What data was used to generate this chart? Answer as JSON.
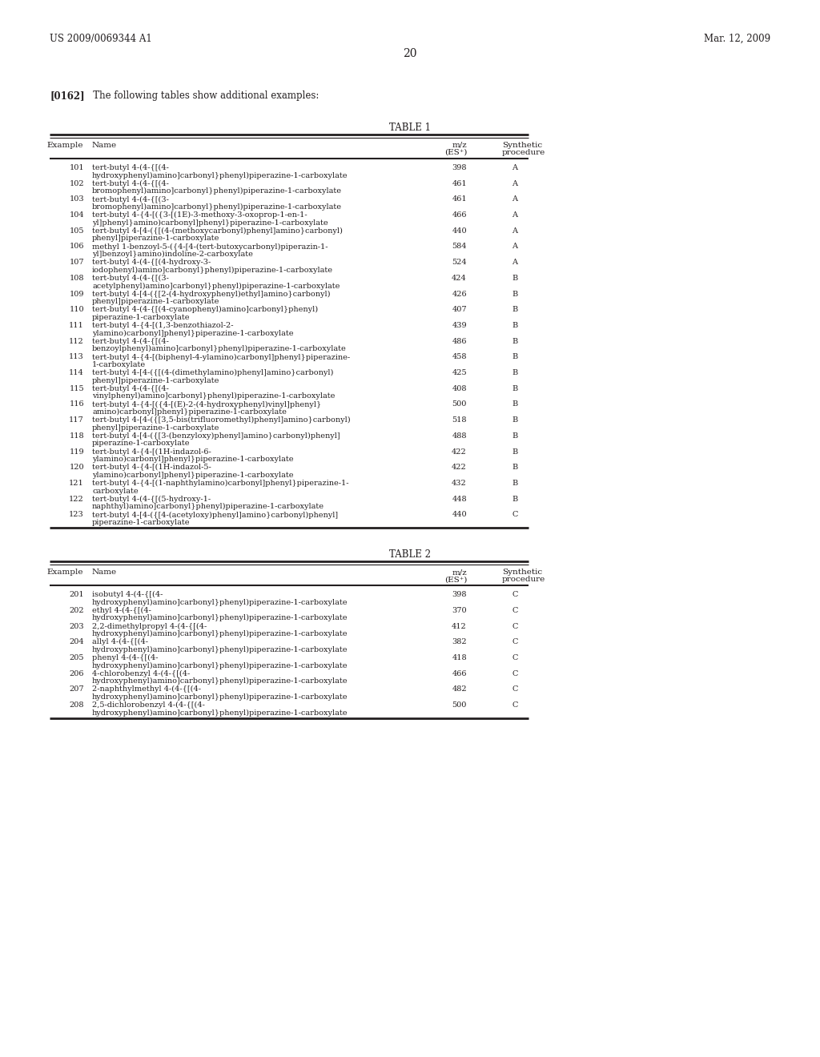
{
  "header_left": "US 2009/0069344 A1",
  "header_right": "Mar. 12, 2009",
  "page_number": "20",
  "paragraph_bold": "[0162]",
  "paragraph_rest": "   The following tables show additional examples:",
  "table1_title": "TABLE 1",
  "table2_title": "TABLE 2",
  "table1_data": [
    [
      "101",
      "tert-butyl 4-(4-{[(4-",
      "hydroxyphenyl)amino]carbonyl}phenyl)piperazine-1-carboxylate",
      "398",
      "A"
    ],
    [
      "102",
      "tert-butyl 4-(4-{[(4-",
      "bromophenyl)amino]carbonyl}phenyl)piperazine-1-carboxylate",
      "461",
      "A"
    ],
    [
      "103",
      "tert-butyl 4-(4-{[(3-",
      "bromophenyl)amino]carbonyl}phenyl)piperazine-1-carboxylate",
      "461",
      "A"
    ],
    [
      "104",
      "tert-butyl 4-{4-[({3-[(1E)-3-methoxy-3-oxoprop-1-en-1-",
      "yl]phenyl}amino)carbonyl]phenyl}piperazine-1-carboxylate",
      "466",
      "A"
    ],
    [
      "105",
      "tert-butyl 4-[4-({[(4-(methoxycarbonyl)phenyl]amino}carbonyl)",
      "phenyl]piperazine-1-carboxylate",
      "440",
      "A"
    ],
    [
      "106",
      "methyl 1-benzoyl-5-({4-[4-(tert-butoxycarbonyl)piperazin-1-",
      "yl]benzoyl}amino)indoline-2-carboxylate",
      "584",
      "A"
    ],
    [
      "107",
      "tert-butyl 4-(4-{[(4-hydroxy-3-",
      "iodophenyl)amino]carbonyl}phenyl)piperazine-1-carboxylate",
      "524",
      "A"
    ],
    [
      "108",
      "tert-butyl 4-(4-{[(3-",
      "acetylphenyl)amino]carbonyl}phenyl)piperazine-1-carboxylate",
      "424",
      "B"
    ],
    [
      "109",
      "tert-butyl 4-[4-({[2-(4-hydroxyphenyl)ethyl]amino}carbonyl)",
      "phenyl]piperazine-1-carboxylate",
      "426",
      "B"
    ],
    [
      "110",
      "tert-butyl 4-(4-{[(4-cyanophenyl)amino]carbonyl}phenyl)",
      "piperazine-1-carboxylate",
      "407",
      "B"
    ],
    [
      "111",
      "tert-butyl 4-{4-[(1,3-benzothiazol-2-",
      "ylamino)carbonyl]phenyl}piperazine-1-carboxylate",
      "439",
      "B"
    ],
    [
      "112",
      "tert-butyl 4-(4-{[(4-",
      "benzoylphenyl)amino]carbonyl}phenyl)piperazine-1-carboxylate",
      "486",
      "B"
    ],
    [
      "113",
      "tert-butyl 4-{4-[(biphenyl-4-ylamino)carbonyl]phenyl}piperazine-",
      "1-carboxylate",
      "458",
      "B"
    ],
    [
      "114",
      "tert-butyl 4-[4-({[(4-(dimethylamino)phenyl]amino}carbonyl)",
      "phenyl]piperazine-1-carboxylate",
      "425",
      "B"
    ],
    [
      "115",
      "tert-butyl 4-(4-{[(4-",
      "vinylphenyl)amino]carbonyl}phenyl)piperazine-1-carboxylate",
      "408",
      "B"
    ],
    [
      "116",
      "tert-butyl 4-{4-[({4-[(E)-2-(4-hydroxyphenyl)vinyl]phenyl}",
      "amino)carbonyl]phenyl}piperazine-1-carboxylate",
      "500",
      "B"
    ],
    [
      "117",
      "tert-butyl 4-[4-({[3,5-bis(trifluoromethyl)phenyl]amino}carbonyl)",
      "phenyl]piperazine-1-carboxylate",
      "518",
      "B"
    ],
    [
      "118",
      "tert-butyl 4-[4-({[3-(benzyloxy)phenyl]amino}carbonyl)phenyl]",
      "piperazine-1-carboxylate",
      "488",
      "B"
    ],
    [
      "119",
      "tert-butyl 4-{4-[(1H-indazol-6-",
      "ylamino)carbonyl]phenyl}piperazine-1-carboxylate",
      "422",
      "B"
    ],
    [
      "120",
      "tert-butyl 4-{4-[(1H-indazol-5-",
      "ylamino)carbonyl]phenyl}piperazine-1-carboxylate",
      "422",
      "B"
    ],
    [
      "121",
      "tert-butyl 4-{4-[(1-naphthylamino)carbonyl]phenyl}piperazine-1-",
      "carboxylate",
      "432",
      "B"
    ],
    [
      "122",
      "tert-butyl 4-(4-{[(5-hydroxy-1-",
      "naphthyl)amino]carbonyl}phenyl)piperazine-1-carboxylate",
      "448",
      "B"
    ],
    [
      "123",
      "tert-butyl 4-[4-({[4-(acetyloxy)phenyl]amino}carbonyl)phenyl]",
      "piperazine-1-carboxylate",
      "440",
      "C"
    ]
  ],
  "table2_data": [
    [
      "201",
      "isobutyl 4-(4-{[(4-",
      "hydroxyphenyl)amino]carbonyl}phenyl)piperazine-1-carboxylate",
      "398",
      "C"
    ],
    [
      "202",
      "ethyl 4-(4-{[(4-",
      "hydroxyphenyl)amino]carbonyl}phenyl)piperazine-1-carboxylate",
      "370",
      "C"
    ],
    [
      "203",
      "2,2-dimethylpropyl 4-(4-{[(4-",
      "hydroxyphenyl)amino]carbonyl}phenyl)piperazine-1-carboxylate",
      "412",
      "C"
    ],
    [
      "204",
      "allyl 4-(4-{[(4-",
      "hydroxyphenyl)amino]carbonyl}phenyl)piperazine-1-carboxylate",
      "382",
      "C"
    ],
    [
      "205",
      "phenyl 4-(4-{[(4-",
      "hydroxyphenyl)amino]carbonyl}phenyl)piperazine-1-carboxylate",
      "418",
      "C"
    ],
    [
      "206",
      "4-chlorobenzyl 4-(4-{[(4-",
      "hydroxyphenyl)amino]carbonyl}phenyl)piperazine-1-carboxylate",
      "466",
      "C"
    ],
    [
      "207",
      "2-naphthylmethyl 4-(4-{[(4-",
      "hydroxyphenyl)amino]carbonyl}phenyl)piperazine-1-carboxylate",
      "482",
      "C"
    ],
    [
      "208",
      "2,5-dichlorobenzyl 4-(4-{[(4-",
      "hydroxyphenyl)amino]carbonyl}phenyl)piperazine-1-carboxylate",
      "500",
      "C"
    ]
  ],
  "bg_color": "#ffffff",
  "text_color": "#231f20"
}
